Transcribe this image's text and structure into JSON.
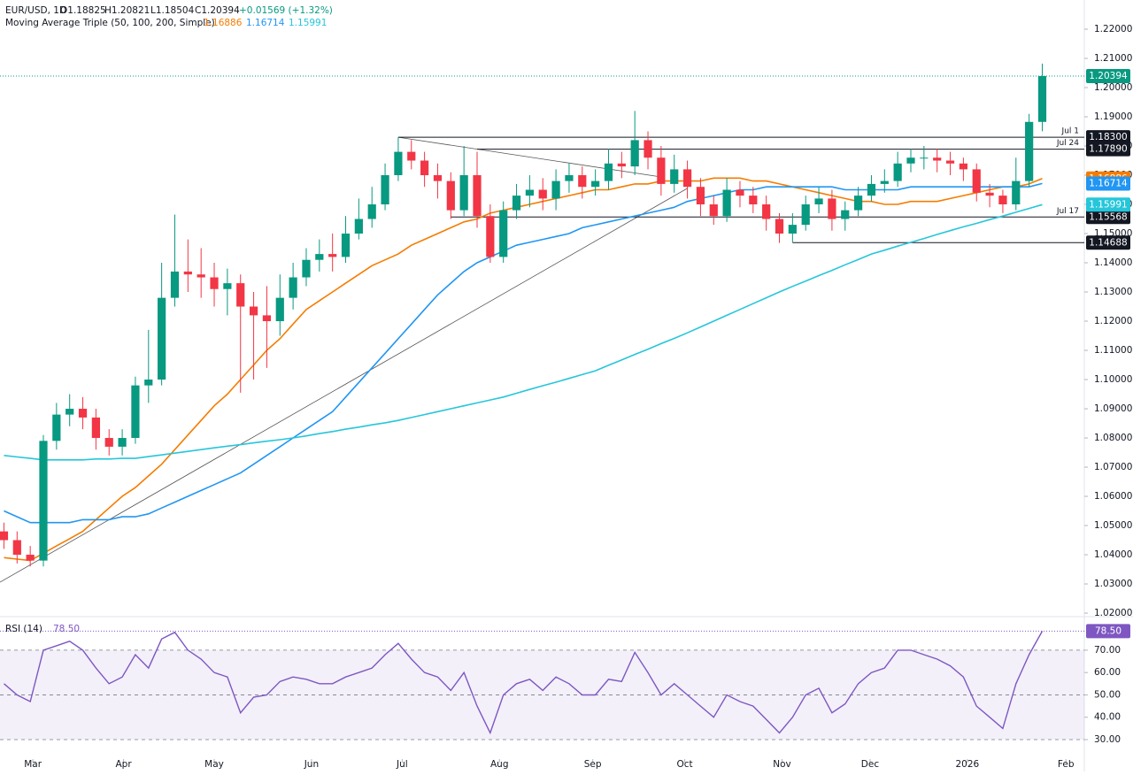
{
  "header": {
    "symbol": "EUR/USD, 1D",
    "open": "O1.18825",
    "high": "H1.20821",
    "low": "L1.18504",
    "close": "C1.20394",
    "change": "+0.01569 (+1.32%)"
  },
  "chart_data": [
    {
      "type": "candlestick",
      "title": "Moving Average Triple (50, 100, 200, Simple)",
      "up_color": "#089981",
      "down_color": "#f23645",
      "open": [
        1.048,
        1.045,
        1.04,
        1.038,
        1.079,
        1.088,
        1.09,
        1.087,
        1.08,
        1.077,
        1.08,
        1.098,
        1.1,
        1.128,
        1.137,
        1.136,
        1.135,
        1.131,
        1.133,
        1.125,
        1.122,
        1.12,
        1.128,
        1.135,
        1.141,
        1.143,
        1.142,
        1.15,
        1.155,
        1.16,
        1.17,
        1.178,
        1.175,
        1.17,
        1.168,
        1.158,
        1.17,
        1.156,
        1.142,
        1.158,
        1.163,
        1.165,
        1.162,
        1.168,
        1.17,
        1.166,
        1.168,
        1.174,
        1.173,
        1.182,
        1.176,
        1.167,
        1.172,
        1.166,
        1.16,
        1.156,
        1.165,
        1.163,
        1.16,
        1.155,
        1.15,
        1.153,
        1.16,
        1.162,
        1.155,
        1.158,
        1.163,
        1.167,
        1.168,
        1.174,
        1.176,
        1.176,
        1.175,
        1.174,
        1.172,
        1.164,
        1.163,
        1.16,
        1.168,
        1.18825
      ],
      "high": [
        1.051,
        1.048,
        1.043,
        1.081,
        1.092,
        1.095,
        1.094,
        1.09,
        1.083,
        1.083,
        1.101,
        1.117,
        1.14,
        1.1565,
        1.148,
        1.145,
        1.14,
        1.138,
        1.136,
        1.13,
        1.132,
        1.136,
        1.14,
        1.145,
        1.148,
        1.15,
        1.156,
        1.162,
        1.166,
        1.174,
        1.183,
        1.182,
        1.178,
        1.174,
        1.171,
        1.18,
        1.178,
        1.16,
        1.161,
        1.167,
        1.17,
        1.169,
        1.172,
        1.174,
        1.173,
        1.172,
        1.179,
        1.178,
        1.192,
        1.185,
        1.18,
        1.177,
        1.175,
        1.169,
        1.163,
        1.169,
        1.168,
        1.166,
        1.163,
        1.157,
        1.157,
        1.163,
        1.166,
        1.165,
        1.161,
        1.166,
        1.17,
        1.172,
        1.178,
        1.179,
        1.18,
        1.179,
        1.178,
        1.176,
        1.174,
        1.167,
        1.165,
        1.176,
        1.191,
        1.20821
      ],
      "low": [
        1.042,
        1.037,
        1.036,
        1.036,
        1.076,
        1.084,
        1.083,
        1.076,
        1.074,
        1.074,
        1.078,
        1.092,
        1.098,
        1.125,
        1.13,
        1.128,
        1.125,
        1.122,
        1.0955,
        1.1,
        1.104,
        1.115,
        1.124,
        1.132,
        1.137,
        1.137,
        1.14,
        1.148,
        1.152,
        1.158,
        1.168,
        1.172,
        1.166,
        1.162,
        1.155,
        1.156,
        1.152,
        1.14,
        1.14,
        1.155,
        1.159,
        1.158,
        1.158,
        1.164,
        1.162,
        1.163,
        1.165,
        1.169,
        1.17,
        1.172,
        1.163,
        1.164,
        1.162,
        1.156,
        1.153,
        1.154,
        1.159,
        1.157,
        1.151,
        1.1468,
        1.147,
        1.151,
        1.157,
        1.151,
        1.151,
        1.156,
        1.161,
        1.164,
        1.166,
        1.171,
        1.172,
        1.171,
        1.17,
        1.168,
        1.161,
        1.159,
        1.157,
        1.158,
        1.166,
        1.18504
      ],
      "close": [
        1.045,
        1.04,
        1.038,
        1.079,
        1.088,
        1.09,
        1.087,
        1.08,
        1.077,
        1.08,
        1.098,
        1.1,
        1.128,
        1.137,
        1.136,
        1.135,
        1.131,
        1.133,
        1.125,
        1.122,
        1.12,
        1.128,
        1.135,
        1.141,
        1.143,
        1.142,
        1.15,
        1.155,
        1.16,
        1.17,
        1.178,
        1.175,
        1.17,
        1.168,
        1.158,
        1.17,
        1.156,
        1.142,
        1.158,
        1.163,
        1.165,
        1.162,
        1.168,
        1.17,
        1.166,
        1.168,
        1.174,
        1.173,
        1.182,
        1.176,
        1.167,
        1.172,
        1.166,
        1.16,
        1.156,
        1.165,
        1.163,
        1.16,
        1.155,
        1.15,
        1.153,
        1.16,
        1.162,
        1.155,
        1.158,
        1.163,
        1.167,
        1.168,
        1.174,
        1.176,
        1.176,
        1.175,
        1.174,
        1.172,
        1.164,
        1.163,
        1.16,
        1.168,
        1.18825,
        1.20394
      ],
      "series": [
        {
          "color": "#f57c00",
          "values": [
            1.039,
            1.0385,
            1.038,
            1.0405,
            1.043,
            1.0455,
            1.048,
            1.052,
            1.056,
            1.06,
            1.063,
            1.067,
            1.071,
            1.076,
            1.081,
            1.086,
            1.091,
            1.095,
            1.1,
            1.105,
            1.11,
            1.114,
            1.119,
            1.124,
            1.127,
            1.13,
            1.133,
            1.136,
            1.139,
            1.141,
            1.143,
            1.146,
            1.148,
            1.15,
            1.152,
            1.154,
            1.155,
            1.157,
            1.158,
            1.159,
            1.16,
            1.161,
            1.162,
            1.163,
            1.164,
            1.165,
            1.165,
            1.166,
            1.167,
            1.167,
            1.168,
            1.168,
            1.168,
            1.168,
            1.169,
            1.169,
            1.169,
            1.168,
            1.168,
            1.167,
            1.166,
            1.165,
            1.164,
            1.163,
            1.162,
            1.161,
            1.161,
            1.16,
            1.16,
            1.161,
            1.161,
            1.161,
            1.162,
            1.163,
            1.164,
            1.165,
            1.166,
            1.166,
            1.167,
            1.16886
          ]
        },
        {
          "color": "#2196f3",
          "values": [
            1.055,
            1.053,
            1.051,
            1.051,
            1.051,
            1.051,
            1.052,
            1.052,
            1.052,
            1.053,
            1.053,
            1.054,
            1.056,
            1.058,
            1.06,
            1.062,
            1.064,
            1.066,
            1.068,
            1.071,
            1.074,
            1.077,
            1.08,
            1.083,
            1.086,
            1.089,
            1.094,
            1.099,
            1.104,
            1.109,
            1.114,
            1.119,
            1.124,
            1.129,
            1.133,
            1.137,
            1.14,
            1.142,
            1.144,
            1.146,
            1.147,
            1.148,
            1.149,
            1.15,
            1.152,
            1.153,
            1.154,
            1.155,
            1.156,
            1.157,
            1.158,
            1.159,
            1.161,
            1.162,
            1.163,
            1.164,
            1.165,
            1.165,
            1.166,
            1.166,
            1.166,
            1.166,
            1.166,
            1.166,
            1.165,
            1.165,
            1.165,
            1.165,
            1.165,
            1.166,
            1.166,
            1.166,
            1.166,
            1.166,
            1.166,
            1.166,
            1.166,
            1.166,
            1.166,
            1.16714
          ]
        },
        {
          "color": "#26c6da",
          "values": [
            1.074,
            1.0735,
            1.073,
            1.0725,
            1.0725,
            1.0725,
            1.0725,
            1.0728,
            1.0728,
            1.073,
            1.073,
            1.0736,
            1.0742,
            1.0748,
            1.0754,
            1.076,
            1.0766,
            1.0772,
            1.0777,
            1.0783,
            1.0789,
            1.0794,
            1.08,
            1.0807,
            1.0815,
            1.0822,
            1.083,
            1.0837,
            1.0845,
            1.0852,
            1.086,
            1.087,
            1.088,
            1.089,
            1.09,
            1.091,
            1.092,
            1.093,
            1.094,
            1.0953,
            1.0966,
            1.0979,
            1.0991,
            1.1004,
            1.1017,
            1.103,
            1.1049,
            1.1067,
            1.1086,
            1.1104,
            1.1123,
            1.1141,
            1.116,
            1.118,
            1.12,
            1.122,
            1.124,
            1.126,
            1.128,
            1.13,
            1.1319,
            1.1337,
            1.1356,
            1.1374,
            1.1393,
            1.1411,
            1.143,
            1.1443,
            1.1457,
            1.147,
            1.1483,
            1.1497,
            1.151,
            1.1523,
            1.1535,
            1.1548,
            1.156,
            1.1573,
            1.1586,
            1.15991
          ]
        }
      ],
      "levels": [
        {
          "value": 1.183,
          "label": "1.18300",
          "note": "Jul 1",
          "start": 30
        },
        {
          "value": 1.1789,
          "label": "1.17890",
          "note": "Jul 24",
          "start": 36
        },
        {
          "value": 1.15568,
          "note": "Jul 17",
          "start": 34
        },
        {
          "value": 1.14688,
          "start": 60
        }
      ],
      "trendlines": [
        {
          "x": [
            30,
            50
          ],
          "y": [
            1.183,
            1.1694
          ]
        },
        {
          "x": [
            -0.3,
            52
          ],
          "y": [
            1.0306,
            1.1655
          ]
        }
      ],
      "xlim": [
        -0.3,
        82.2
      ],
      "xticks": [
        {
          "value": 2.2,
          "label": "Mar"
        },
        {
          "value": 9.1,
          "label": "Apr"
        },
        {
          "value": 16,
          "label": "May"
        },
        {
          "value": 23.4,
          "label": "Jun"
        },
        {
          "value": 30.3,
          "label": "Jul"
        },
        {
          "value": 37.7,
          "label": "Aug"
        },
        {
          "value": 44.8,
          "label": "Sep"
        },
        {
          "value": 51.8,
          "label": "Oct"
        },
        {
          "value": 59.2,
          "label": "Nov"
        },
        {
          "value": 65.9,
          "label": "Dec"
        },
        {
          "value": 73.3,
          "label": "2026"
        },
        {
          "value": 80.8,
          "label": "Feb"
        }
      ],
      "ylim": [
        1.0188,
        1.23
      ],
      "yticks": [
        {
          "value": 1.02,
          "label": "1.02000"
        },
        {
          "value": 1.03,
          "label": "1.03000"
        },
        {
          "value": 1.04,
          "label": "1.04000"
        },
        {
          "value": 1.05,
          "label": "1.05000"
        },
        {
          "value": 1.06,
          "label": "1.06000"
        },
        {
          "value": 1.07,
          "label": "1.07000"
        },
        {
          "value": 1.08,
          "label": "1.08000"
        },
        {
          "value": 1.09,
          "label": "1.09000"
        },
        {
          "value": 1.1,
          "label": "1.10000"
        },
        {
          "value": 1.11,
          "label": "1.11000"
        },
        {
          "value": 1.12,
          "label": "1.12000"
        },
        {
          "value": 1.13,
          "label": "1.13000"
        },
        {
          "value": 1.14,
          "label": "1.14000"
        },
        {
          "value": 1.15,
          "label": "1.15000"
        },
        {
          "value": 1.16,
          "label": "1.16000"
        },
        {
          "value": 1.17,
          "label": "1.17000"
        },
        {
          "value": 1.18,
          "label": "1.18000"
        },
        {
          "value": 1.19,
          "label": "1.19000"
        },
        {
          "value": 1.2,
          "label": "1.20000"
        },
        {
          "value": 1.21,
          "label": "1.21000"
        },
        {
          "value": 1.22,
          "label": "1.22000"
        }
      ]
    },
    {
      "type": "line",
      "title": "RSI (14)",
      "color": "#7e57c2",
      "values": [
        55,
        50,
        47,
        70,
        72,
        74,
        70,
        62,
        55,
        58,
        68,
        62,
        75,
        78,
        70,
        66,
        60,
        58,
        42,
        49,
        50,
        56,
        58,
        57,
        55,
        55,
        58,
        60,
        62,
        68,
        73,
        66,
        60,
        58,
        52,
        60,
        45,
        33,
        50,
        55,
        57,
        52,
        58,
        55,
        50,
        50,
        57,
        56,
        69,
        60,
        50,
        55,
        50,
        45,
        40,
        50,
        47,
        45,
        39,
        33,
        40,
        50,
        53,
        42,
        46,
        55,
        60,
        62,
        70,
        70,
        68,
        66,
        63,
        58,
        45,
        40,
        35,
        55,
        68,
        78.5
      ],
      "value_labels": {
        "79": "78.50"
      },
      "levels": [
        30,
        50,
        70
      ],
      "ylim": [
        21.3,
        85
      ],
      "yticks": [
        {
          "value": 30,
          "label": "30.00"
        },
        {
          "value": 40,
          "label": "40.00"
        },
        {
          "value": 50,
          "label": "50.00"
        },
        {
          "value": 60,
          "label": "60.00"
        },
        {
          "value": 70,
          "label": "70.00"
        }
      ]
    }
  ]
}
